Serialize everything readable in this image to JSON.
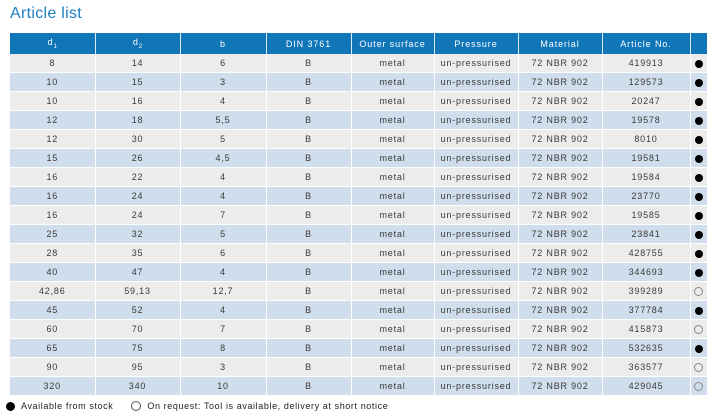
{
  "title": "Article list",
  "colors": {
    "header_bg": "#1076b8",
    "title_text": "#1d7fc0",
    "row_stripe_gray": "#ececec",
    "row_stripe_blue": "#cfddec",
    "header_text": "#ffffff",
    "dot_filled": "#000000"
  },
  "table": {
    "columns": [
      {
        "key": "d1",
        "label": "d",
        "sub": "1"
      },
      {
        "key": "d2",
        "label": "d",
        "sub": "2"
      },
      {
        "key": "b",
        "label": "b"
      },
      {
        "key": "din",
        "label": "DIN 3761"
      },
      {
        "key": "outer_surface",
        "label": "Outer surface"
      },
      {
        "key": "pressure",
        "label": "Pressure"
      },
      {
        "key": "material",
        "label": "Material"
      },
      {
        "key": "article_no",
        "label": "Article No."
      },
      {
        "key": "availability",
        "label": ""
      }
    ],
    "rows": [
      {
        "d1": "8",
        "d2": "14",
        "b": "6",
        "din": "B",
        "outer_surface": "metal",
        "pressure": "un-pressurised",
        "material": "72 NBR 902",
        "article_no": "419913",
        "availability": "stock"
      },
      {
        "d1": "10",
        "d2": "15",
        "b": "3",
        "din": "B",
        "outer_surface": "metal",
        "pressure": "un-pressurised",
        "material": "72 NBR 902",
        "article_no": "129573",
        "availability": "stock"
      },
      {
        "d1": "10",
        "d2": "16",
        "b": "4",
        "din": "B",
        "outer_surface": "metal",
        "pressure": "un-pressurised",
        "material": "72 NBR 902",
        "article_no": "20247",
        "availability": "stock"
      },
      {
        "d1": "12",
        "d2": "18",
        "b": "5,5",
        "din": "B",
        "outer_surface": "metal",
        "pressure": "un-pressurised",
        "material": "72 NBR 902",
        "article_no": "19578",
        "availability": "stock"
      },
      {
        "d1": "12",
        "d2": "30",
        "b": "5",
        "din": "B",
        "outer_surface": "metal",
        "pressure": "un-pressurised",
        "material": "72 NBR 902",
        "article_no": "8010",
        "availability": "stock"
      },
      {
        "d1": "15",
        "d2": "26",
        "b": "4,5",
        "din": "B",
        "outer_surface": "metal",
        "pressure": "un-pressurised",
        "material": "72 NBR 902",
        "article_no": "19581",
        "availability": "stock"
      },
      {
        "d1": "16",
        "d2": "22",
        "b": "4",
        "din": "B",
        "outer_surface": "metal",
        "pressure": "un-pressurised",
        "material": "72 NBR 902",
        "article_no": "19584",
        "availability": "stock"
      },
      {
        "d1": "16",
        "d2": "24",
        "b": "4",
        "din": "B",
        "outer_surface": "metal",
        "pressure": "un-pressurised",
        "material": "72 NBR 902",
        "article_no": "23770",
        "availability": "stock"
      },
      {
        "d1": "16",
        "d2": "24",
        "b": "7",
        "din": "B",
        "outer_surface": "metal",
        "pressure": "un-pressurised",
        "material": "72 NBR 902",
        "article_no": "19585",
        "availability": "stock"
      },
      {
        "d1": "25",
        "d2": "32",
        "b": "5",
        "din": "B",
        "outer_surface": "metal",
        "pressure": "un-pressurised",
        "material": "72 NBR 902",
        "article_no": "23841",
        "availability": "stock"
      },
      {
        "d1": "28",
        "d2": "35",
        "b": "6",
        "din": "B",
        "outer_surface": "metal",
        "pressure": "un-pressurised",
        "material": "72 NBR 902",
        "article_no": "428755",
        "availability": "stock"
      },
      {
        "d1": "40",
        "d2": "47",
        "b": "4",
        "din": "B",
        "outer_surface": "metal",
        "pressure": "un-pressurised",
        "material": "72 NBR 902",
        "article_no": "344693",
        "availability": "stock"
      },
      {
        "d1": "42,86",
        "d2": "59,13",
        "b": "12,7",
        "din": "B",
        "outer_surface": "metal",
        "pressure": "un-pressurised",
        "material": "72 NBR 902",
        "article_no": "399289",
        "availability": "request"
      },
      {
        "d1": "45",
        "d2": "52",
        "b": "4",
        "din": "B",
        "outer_surface": "metal",
        "pressure": "un-pressurised",
        "material": "72 NBR 902",
        "article_no": "377784",
        "availability": "stock"
      },
      {
        "d1": "60",
        "d2": "70",
        "b": "7",
        "din": "B",
        "outer_surface": "metal",
        "pressure": "un-pressurised",
        "material": "72 NBR 902",
        "article_no": "415873",
        "availability": "request"
      },
      {
        "d1": "65",
        "d2": "75",
        "b": "8",
        "din": "B",
        "outer_surface": "metal",
        "pressure": "un-pressurised",
        "material": "72 NBR 902",
        "article_no": "532635",
        "availability": "stock"
      },
      {
        "d1": "90",
        "d2": "95",
        "b": "3",
        "din": "B",
        "outer_surface": "metal",
        "pressure": "un-pressurised",
        "material": "72 NBR 902",
        "article_no": "363577",
        "availability": "request"
      },
      {
        "d1": "320",
        "d2": "340",
        "b": "10",
        "din": "B",
        "outer_surface": "metal",
        "pressure": "un-pressurised",
        "material": "72 NBR 902",
        "article_no": "429045",
        "availability": "request"
      }
    ]
  },
  "legend": {
    "stock_label": "Available from stock",
    "request_label": "On request: Tool is available, delivery at short notice"
  }
}
